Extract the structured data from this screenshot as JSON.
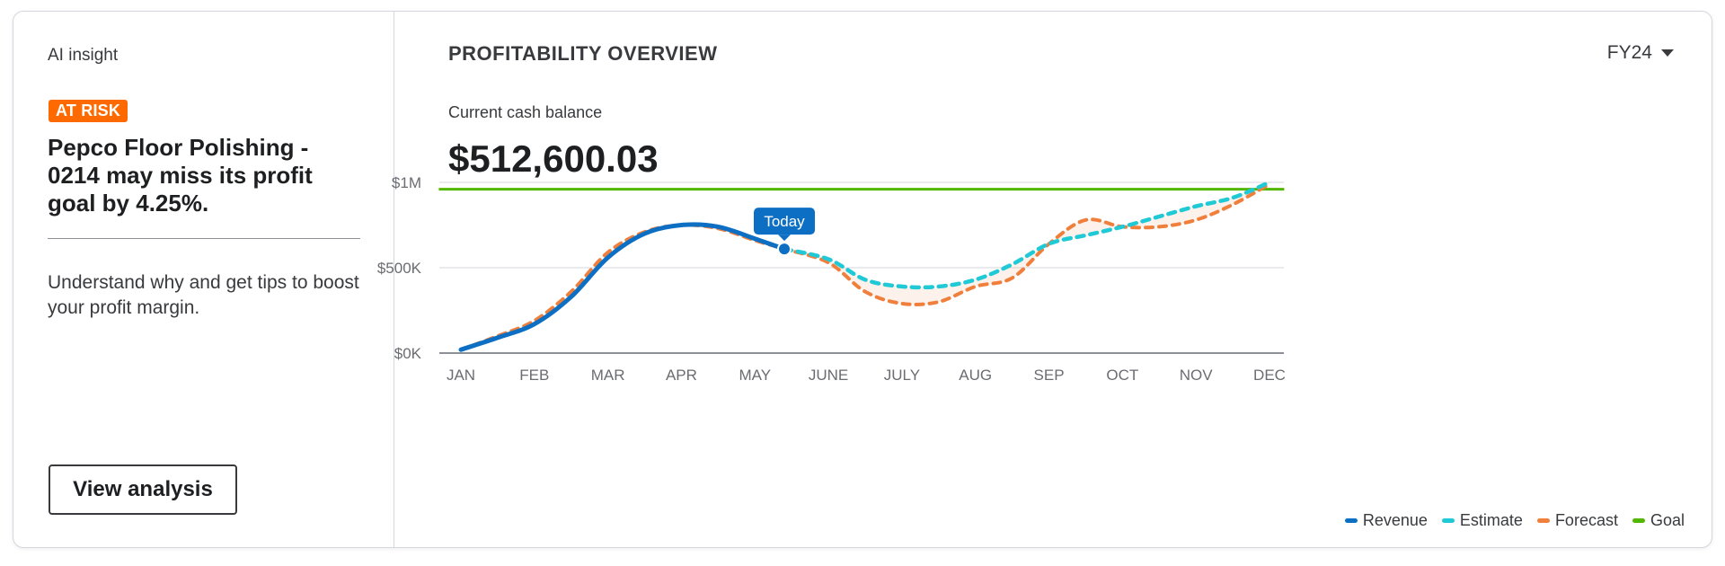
{
  "insight": {
    "label": "AI insight",
    "badge": "AT RISK",
    "headline": "Pepco Floor Polishing - 0214 may miss its profit goal by 4.25%.",
    "description": "Understand why and get tips to boost your profit margin.",
    "button": "View analysis"
  },
  "overview": {
    "title": "PROFITABILITY OVERVIEW",
    "period": "FY24",
    "cash_label": "Current cash balance",
    "cash_value": "$512,600.03",
    "today_label": "Today"
  },
  "colors": {
    "revenue": "#0d6fc4",
    "estimate": "#20c9d6",
    "forecast": "#f07f3c",
    "goal": "#53b700",
    "badge": "#ff6a00"
  },
  "chart_data": {
    "type": "line",
    "categories": [
      "JAN",
      "FEB",
      "MAR",
      "APR",
      "MAY",
      "JUNE",
      "JULY",
      "AUG",
      "SEP",
      "OCT",
      "NOV",
      "DEC"
    ],
    "y_ticks": [
      "$0K",
      "$500K",
      "$1M"
    ],
    "ylim": [
      0,
      1000000
    ],
    "series": [
      {
        "name": "Revenue",
        "x": [
          0,
          0.5,
          1,
          1.5,
          2,
          2.5,
          3,
          3.5,
          4,
          4.4
        ],
        "values": [
          20000,
          90000,
          170000,
          330000,
          560000,
          700000,
          750000,
          740000,
          670000,
          610000
        ]
      },
      {
        "name": "Estimate",
        "x": [
          4.4,
          5,
          5.5,
          6,
          6.5,
          7,
          7.5,
          8,
          8.5,
          9,
          9.5,
          10,
          10.5,
          11
        ],
        "values": [
          610000,
          550000,
          430000,
          390000,
          390000,
          430000,
          520000,
          640000,
          690000,
          740000,
          800000,
          860000,
          910000,
          1000000
        ]
      },
      {
        "name": "Forecast",
        "x": [
          0,
          0.5,
          1,
          1.5,
          2,
          2.5,
          3,
          3.5,
          4,
          4.4,
          5,
          5.5,
          6,
          6.5,
          7,
          7.5,
          8,
          8.5,
          9,
          9.5,
          10,
          10.5,
          11
        ],
        "values": [
          20000,
          100000,
          190000,
          360000,
          590000,
          710000,
          750000,
          730000,
          660000,
          610000,
          530000,
          360000,
          290000,
          300000,
          390000,
          440000,
          640000,
          780000,
          740000,
          740000,
          780000,
          870000,
          990000
        ]
      },
      {
        "name": "Goal",
        "x": [
          -0.3,
          11.2
        ],
        "values": [
          960000,
          960000
        ]
      }
    ],
    "grid": true,
    "legend_position": "bottom-right"
  },
  "legend": [
    {
      "label": "Revenue",
      "color": "#0d6fc4"
    },
    {
      "label": "Estimate",
      "color": "#20c9d6"
    },
    {
      "label": "Forecast",
      "color": "#f07f3c"
    },
    {
      "label": "Goal",
      "color": "#53b700"
    }
  ]
}
